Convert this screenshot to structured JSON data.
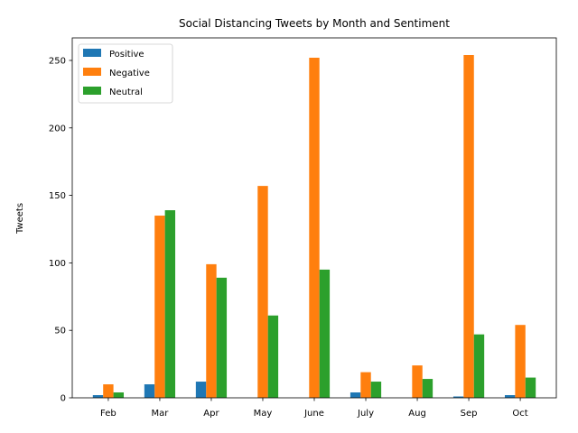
{
  "chart_data": {
    "type": "bar",
    "title": "Social Distancing Tweets by Month and Sentiment",
    "xlabel": "",
    "ylabel": "Tweets",
    "categories": [
      "Feb",
      "Mar",
      "Apr",
      "May",
      "June",
      "July",
      "Aug",
      "Sep",
      "Oct"
    ],
    "series": [
      {
        "name": "Positive",
        "color": "#1f77b4",
        "values": [
          2,
          10,
          12,
          0,
          0,
          4,
          0,
          1,
          2
        ]
      },
      {
        "name": "Negative",
        "color": "#ff7f0e",
        "values": [
          10,
          135,
          99,
          157,
          252,
          19,
          24,
          254,
          54
        ]
      },
      {
        "name": "Neutral",
        "color": "#2ca02c",
        "values": [
          4,
          139,
          89,
          61,
          95,
          12,
          14,
          47,
          15
        ]
      }
    ],
    "ylim": [
      0,
      266.7
    ],
    "yticks": [
      0,
      50,
      100,
      150,
      200,
      250
    ],
    "grid": false,
    "legend": "top-left"
  }
}
